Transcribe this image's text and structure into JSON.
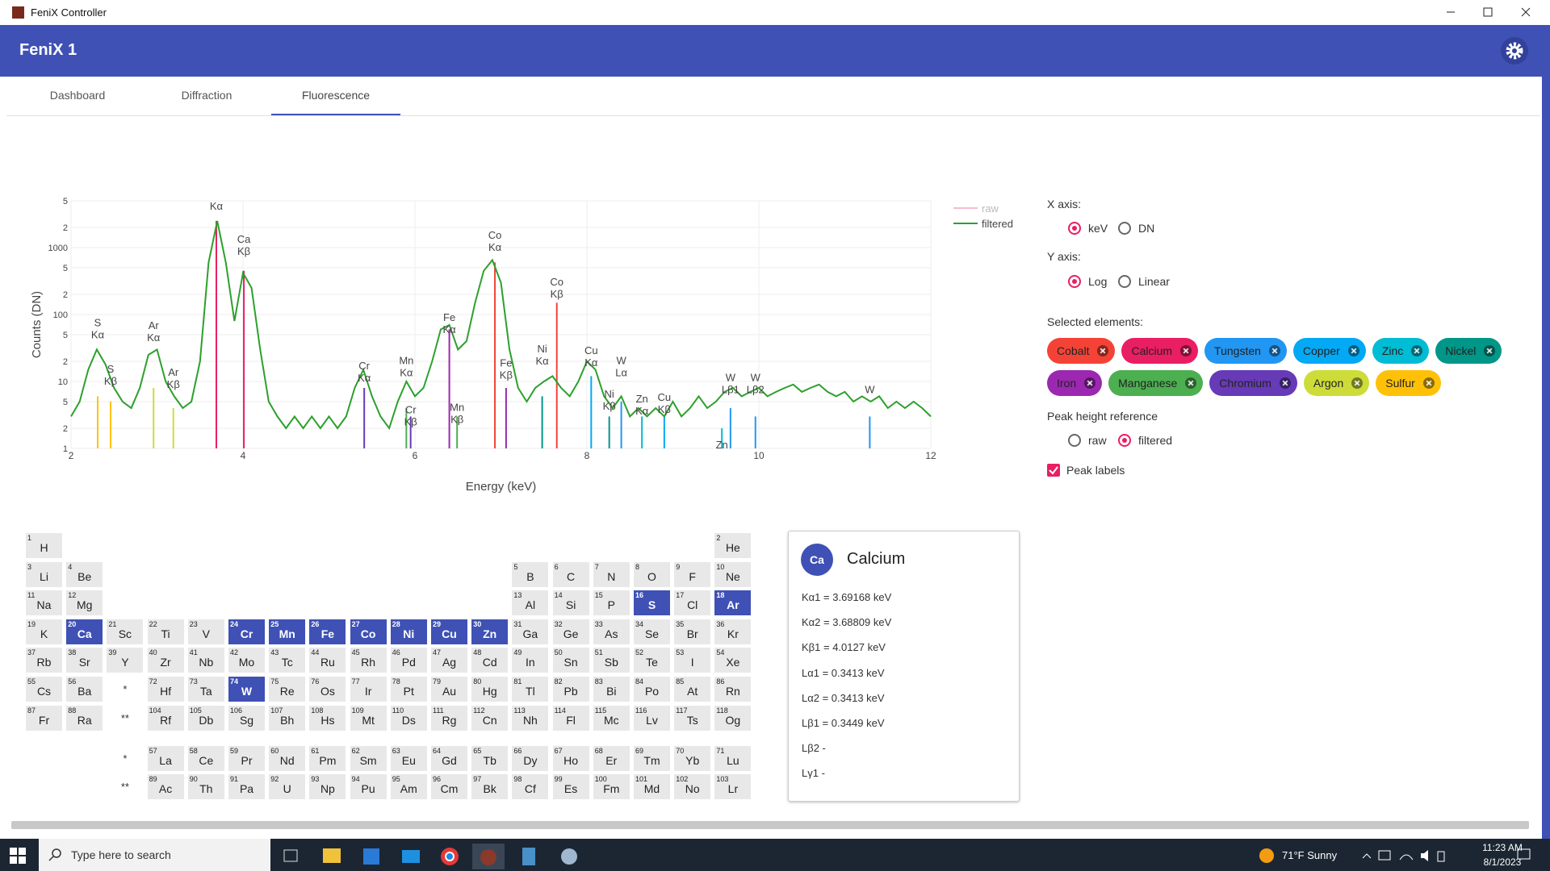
{
  "window": {
    "title": "FeniX Controller"
  },
  "header": {
    "title": "FeniX 1"
  },
  "tabs": {
    "items": [
      "Dashboard",
      "Diffraction",
      "Fluorescence"
    ],
    "active": 2
  },
  "chart": {
    "type": "line",
    "xlabel": "Energy (keV)",
    "ylabel": "Counts (DN)",
    "log_y": true,
    "grid": true,
    "xlim": [
      2,
      12
    ],
    "ylim": [
      1,
      5000
    ],
    "xticks": [
      2,
      4,
      6,
      8,
      10,
      12
    ],
    "yticks": [
      1,
      {
        "value": 2,
        "label": "2"
      },
      {
        "value": 5,
        "label": "5"
      },
      10,
      {
        "value": 20,
        "label": "2"
      },
      {
        "value": 50,
        "label": "5"
      },
      100,
      {
        "value": 200,
        "label": "2"
      },
      {
        "value": 500,
        "label": "5"
      },
      1000,
      {
        "value": 2000,
        "label": "2"
      },
      {
        "value": 5000,
        "label": "5"
      }
    ],
    "hidden_series": [
      {
        "name": "raw",
        "color": "#f48fb1"
      }
    ],
    "x": [
      2.0,
      2.1,
      2.2,
      2.3,
      2.4,
      2.5,
      2.6,
      2.7,
      2.8,
      2.9,
      3.0,
      3.1,
      3.2,
      3.3,
      3.4,
      3.5,
      3.6,
      3.7,
      3.8,
      3.9,
      4.0,
      4.1,
      4.2,
      4.3,
      4.4,
      4.5,
      4.6,
      4.7,
      4.8,
      4.9,
      5.0,
      5.1,
      5.2,
      5.3,
      5.4,
      5.5,
      5.6,
      5.7,
      5.8,
      5.9,
      6.0,
      6.1,
      6.2,
      6.3,
      6.4,
      6.5,
      6.6,
      6.7,
      6.8,
      6.9,
      7.0,
      7.1,
      7.2,
      7.3,
      7.4,
      7.5,
      7.6,
      7.7,
      7.8,
      7.9,
      8.0,
      8.1,
      8.2,
      8.3,
      8.4,
      8.5,
      8.6,
      8.7,
      8.8,
      8.9,
      9.0,
      9.1,
      9.2,
      9.3,
      9.4,
      9.5,
      9.6,
      9.7,
      9.8,
      9.9,
      10.0,
      10.1,
      10.2,
      10.3,
      10.4,
      10.5,
      10.6,
      10.7,
      10.8,
      10.9,
      11.0,
      11.1,
      11.2,
      11.3,
      11.4,
      11.5,
      11.6,
      11.7,
      11.8,
      11.9,
      12.0
    ],
    "series": [
      {
        "name": "filtered",
        "color": "#2ca02c",
        "values": [
          3,
          5,
          15,
          30,
          18,
          8,
          5,
          4,
          8,
          25,
          30,
          10,
          6,
          4,
          5,
          20,
          600,
          2500,
          600,
          80,
          420,
          250,
          30,
          5,
          3,
          2,
          3,
          2,
          3,
          2,
          3,
          2,
          3,
          8,
          15,
          6,
          3,
          2,
          5,
          10,
          6,
          8,
          20,
          60,
          70,
          30,
          40,
          150,
          450,
          650,
          300,
          30,
          8,
          5,
          8,
          10,
          12,
          8,
          6,
          10,
          20,
          15,
          6,
          4,
          6,
          3,
          4,
          3,
          4,
          3,
          5,
          3,
          4,
          6,
          4,
          5,
          7,
          8,
          6,
          7,
          8,
          6,
          7,
          8,
          9,
          7,
          8,
          9,
          7,
          6,
          7,
          5,
          6,
          5,
          6,
          4,
          5,
          4,
          5,
          4,
          3
        ]
      }
    ],
    "element_lines": [
      {
        "x": 2.31,
        "height": 6,
        "color": "#ffc107"
      },
      {
        "x": 2.46,
        "height": 5,
        "color": "#ffc107"
      },
      {
        "x": 2.96,
        "height": 8,
        "color": "#cddc39"
      },
      {
        "x": 3.19,
        "height": 4,
        "color": "#cddc39"
      },
      {
        "x": 3.69,
        "height": 2500,
        "color": "#e91e63"
      },
      {
        "x": 4.01,
        "height": 450,
        "color": "#e91e63"
      },
      {
        "x": 5.41,
        "height": 8,
        "color": "#673ab7"
      },
      {
        "x": 5.95,
        "height": 3,
        "color": "#673ab7"
      },
      {
        "x": 5.9,
        "height": 4,
        "color": "#4caf50"
      },
      {
        "x": 6.49,
        "height": 3,
        "color": "#4caf50"
      },
      {
        "x": 6.4,
        "height": 60,
        "color": "#9c27b0"
      },
      {
        "x": 7.06,
        "height": 8,
        "color": "#9c27b0"
      },
      {
        "x": 6.93,
        "height": 600,
        "color": "#f44336"
      },
      {
        "x": 7.65,
        "height": 150,
        "color": "#f44336"
      },
      {
        "x": 7.48,
        "height": 6,
        "color": "#009688"
      },
      {
        "x": 8.26,
        "height": 3,
        "color": "#009688"
      },
      {
        "x": 8.05,
        "height": 12,
        "color": "#03a9f4"
      },
      {
        "x": 8.9,
        "height": 3,
        "color": "#03a9f4"
      },
      {
        "x": 8.64,
        "height": 3,
        "color": "#00bcd4"
      },
      {
        "x": 9.57,
        "height": 2,
        "color": "#00bcd4"
      },
      {
        "x": 8.4,
        "height": 5,
        "color": "#2196f3"
      },
      {
        "x": 9.67,
        "height": 4,
        "color": "#2196f3"
      },
      {
        "x": 9.96,
        "height": 3,
        "color": "#2196f3"
      },
      {
        "x": 11.29,
        "height": 3,
        "color": "#2196f3"
      }
    ],
    "annotations": [
      {
        "x": 3.69,
        "y": 3700,
        "text": [
          "Kα"
        ]
      },
      {
        "x": 4.01,
        "y": 780,
        "text": [
          "Ca",
          "Kβ"
        ]
      },
      {
        "x": 2.31,
        "y": 44,
        "text": [
          "S",
          "Kα"
        ]
      },
      {
        "x": 2.46,
        "y": 9,
        "text": [
          "S",
          "Kβ"
        ]
      },
      {
        "x": 2.96,
        "y": 40,
        "text": [
          "Ar",
          "Kα"
        ]
      },
      {
        "x": 3.19,
        "y": 8,
        "text": [
          "Ar",
          "Kβ"
        ]
      },
      {
        "x": 5.41,
        "y": 10,
        "text": [
          "Cr",
          "Kα"
        ]
      },
      {
        "x": 5.9,
        "y": 12,
        "text": [
          "Mn",
          "Kα"
        ]
      },
      {
        "x": 5.95,
        "y": 2.2,
        "text": [
          "Cr",
          "Kβ"
        ]
      },
      {
        "x": 6.4,
        "y": 53,
        "text": [
          "Fe",
          "Kα"
        ]
      },
      {
        "x": 6.49,
        "y": 2.4,
        "text": [
          "Mn",
          "Kβ"
        ]
      },
      {
        "x": 6.93,
        "y": 900,
        "text": [
          "Co",
          "Kα"
        ]
      },
      {
        "x": 7.06,
        "y": 11,
        "text": [
          "Fe",
          "Kβ"
        ]
      },
      {
        "x": 7.65,
        "y": 180,
        "text": [
          "Co",
          "Kβ"
        ]
      },
      {
        "x": 7.48,
        "y": 18,
        "text": [
          "Ni",
          "Kα"
        ]
      },
      {
        "x": 8.05,
        "y": 17,
        "text": [
          "Cu",
          "Kα"
        ]
      },
      {
        "x": 8.4,
        "y": 12,
        "text": [
          "W",
          "Lα"
        ]
      },
      {
        "x": 8.26,
        "y": 3.8,
        "text": [
          "Ni",
          "Kβ"
        ]
      },
      {
        "x": 8.64,
        "y": 3.2,
        "text": [
          "Zn",
          "Kα"
        ]
      },
      {
        "x": 8.9,
        "y": 3.4,
        "text": [
          "Cu",
          "Kβ"
        ]
      },
      {
        "x": 9.67,
        "y": 6.7,
        "text": [
          "W",
          "Lβ1"
        ]
      },
      {
        "x": 9.96,
        "y": 6.7,
        "text": [
          "W",
          "Lβ2"
        ]
      },
      {
        "x": 9.57,
        "y": 1,
        "text": [
          "Zn"
        ]
      },
      {
        "x": 11.29,
        "y": 6.7,
        "text": [
          "W"
        ]
      }
    ]
  },
  "controls": {
    "x_axis": {
      "label": "X axis:",
      "options": [
        "keV",
        "DN"
      ],
      "selected": 0
    },
    "y_axis": {
      "label": "Y axis:",
      "options": [
        "Log",
        "Linear"
      ],
      "selected": 0
    },
    "selected_elements": {
      "label": "Selected elements:",
      "chips": [
        {
          "name": "Cobalt",
          "color": "#f44336"
        },
        {
          "name": "Calcium",
          "color": "#e91e63"
        },
        {
          "name": "Tungsten",
          "color": "#2196f3"
        },
        {
          "name": "Copper",
          "color": "#03a9f4"
        },
        {
          "name": "Zinc",
          "color": "#00bcd4"
        },
        {
          "name": "Nickel",
          "color": "#009688"
        },
        {
          "name": "Iron",
          "color": "#9c27b0"
        },
        {
          "name": "Manganese",
          "color": "#4caf50"
        },
        {
          "name": "Chromium",
          "color": "#673ab7"
        },
        {
          "name": "Argon",
          "color": "#cddc39"
        },
        {
          "name": "Sulfur",
          "color": "#ffc107"
        }
      ]
    },
    "peak_height_reference": {
      "label": "Peak height reference",
      "options": [
        "raw",
        "filtered"
      ],
      "selected": 1
    },
    "peak_labels": {
      "label": "Peak labels",
      "checked": true
    }
  },
  "periodic_table": {
    "selected": [
      16,
      18,
      20,
      24,
      25,
      26,
      27,
      28,
      29,
      30,
      74
    ],
    "rows": [
      [
        [
          1,
          "H"
        ],
        null,
        null,
        null,
        null,
        null,
        null,
        null,
        null,
        null,
        null,
        null,
        null,
        null,
        null,
        null,
        null,
        [
          2,
          "He"
        ]
      ],
      [
        [
          3,
          "Li"
        ],
        [
          4,
          "Be"
        ],
        null,
        null,
        null,
        null,
        null,
        null,
        null,
        null,
        null,
        null,
        [
          5,
          "B"
        ],
        [
          6,
          "C"
        ],
        [
          7,
          "N"
        ],
        [
          8,
          "O"
        ],
        [
          9,
          "F"
        ],
        [
          10,
          "Ne"
        ]
      ],
      [
        [
          11,
          "Na"
        ],
        [
          12,
          "Mg"
        ],
        null,
        null,
        null,
        null,
        null,
        null,
        null,
        null,
        null,
        null,
        [
          13,
          "Al"
        ],
        [
          14,
          "Si"
        ],
        [
          15,
          "P"
        ],
        [
          16,
          "S"
        ],
        [
          17,
          "Cl"
        ],
        [
          18,
          "Ar"
        ]
      ],
      [
        [
          19,
          "K"
        ],
        [
          20,
          "Ca"
        ],
        [
          21,
          "Sc"
        ],
        [
          22,
          "Ti"
        ],
        [
          23,
          "V"
        ],
        [
          24,
          "Cr"
        ],
        [
          25,
          "Mn"
        ],
        [
          26,
          "Fe"
        ],
        [
          27,
          "Co"
        ],
        [
          28,
          "Ni"
        ],
        [
          29,
          "Cu"
        ],
        [
          30,
          "Zn"
        ],
        [
          31,
          "Ga"
        ],
        [
          32,
          "Ge"
        ],
        [
          33,
          "As"
        ],
        [
          34,
          "Se"
        ],
        [
          35,
          "Br"
        ],
        [
          36,
          "Kr"
        ]
      ],
      [
        [
          37,
          "Rb"
        ],
        [
          38,
          "Sr"
        ],
        [
          39,
          "Y"
        ],
        [
          40,
          "Zr"
        ],
        [
          41,
          "Nb"
        ],
        [
          42,
          "Mo"
        ],
        [
          43,
          "Tc"
        ],
        [
          44,
          "Ru"
        ],
        [
          45,
          "Rh"
        ],
        [
          46,
          "Pd"
        ],
        [
          47,
          "Ag"
        ],
        [
          48,
          "Cd"
        ],
        [
          49,
          "In"
        ],
        [
          50,
          "Sn"
        ],
        [
          51,
          "Sb"
        ],
        [
          52,
          "Te"
        ],
        [
          53,
          "I"
        ],
        [
          54,
          "Xe"
        ]
      ],
      [
        [
          55,
          "Cs"
        ],
        [
          56,
          "Ba"
        ],
        "*",
        [
          72,
          "Hf"
        ],
        [
          73,
          "Ta"
        ],
        [
          74,
          "W"
        ],
        [
          75,
          "Re"
        ],
        [
          76,
          "Os"
        ],
        [
          77,
          "Ir"
        ],
        [
          78,
          "Pt"
        ],
        [
          79,
          "Au"
        ],
        [
          80,
          "Hg"
        ],
        [
          81,
          "Tl"
        ],
        [
          82,
          "Pb"
        ],
        [
          83,
          "Bi"
        ],
        [
          84,
          "Po"
        ],
        [
          85,
          "At"
        ],
        [
          86,
          "Rn"
        ]
      ],
      [
        [
          87,
          "Fr"
        ],
        [
          88,
          "Ra"
        ],
        "**",
        [
          104,
          "Rf"
        ],
        [
          105,
          "Db"
        ],
        [
          106,
          "Sg"
        ],
        [
          107,
          "Bh"
        ],
        [
          108,
          "Hs"
        ],
        [
          109,
          "Mt"
        ],
        [
          110,
          "Ds"
        ],
        [
          111,
          "Rg"
        ],
        [
          112,
          "Cn"
        ],
        [
          113,
          "Nh"
        ],
        [
          114,
          "Fl"
        ],
        [
          115,
          "Mc"
        ],
        [
          116,
          "Lv"
        ],
        [
          117,
          "Ts"
        ],
        [
          118,
          "Og"
        ]
      ],
      [
        null,
        null,
        "*",
        [
          57,
          "La"
        ],
        [
          58,
          "Ce"
        ],
        [
          59,
          "Pr"
        ],
        [
          60,
          "Nd"
        ],
        [
          61,
          "Pm"
        ],
        [
          62,
          "Sm"
        ],
        [
          63,
          "Eu"
        ],
        [
          64,
          "Gd"
        ],
        [
          65,
          "Tb"
        ],
        [
          66,
          "Dy"
        ],
        [
          67,
          "Ho"
        ],
        [
          68,
          "Er"
        ],
        [
          69,
          "Tm"
        ],
        [
          70,
          "Yb"
        ],
        [
          71,
          "Lu"
        ]
      ],
      [
        null,
        null,
        "**",
        [
          89,
          "Ac"
        ],
        [
          90,
          "Th"
        ],
        [
          91,
          "Pa"
        ],
        [
          92,
          "U"
        ],
        [
          93,
          "Np"
        ],
        [
          94,
          "Pu"
        ],
        [
          95,
          "Am"
        ],
        [
          96,
          "Cm"
        ],
        [
          97,
          "Bk"
        ],
        [
          98,
          "Cf"
        ],
        [
          99,
          "Es"
        ],
        [
          100,
          "Fm"
        ],
        [
          101,
          "Md"
        ],
        [
          102,
          "No"
        ],
        [
          103,
          "Lr"
        ]
      ]
    ]
  },
  "info_card": {
    "symbol": "Ca",
    "name": "Calcium",
    "lines": [
      "Kα1 = 3.69168 keV",
      "Kα2 = 3.68809 keV",
      "Kβ1 = 4.0127 keV",
      "Lα1 = 0.3413 keV",
      "Lα2 = 0.3413 keV",
      "Lβ1 = 0.3449 keV",
      "Lβ2 -",
      "Lγ1 -"
    ]
  },
  "taskbar": {
    "search_placeholder": "Type here to search",
    "weather": "71°F Sunny",
    "time": "11:23 AM",
    "date": "8/1/2023"
  }
}
